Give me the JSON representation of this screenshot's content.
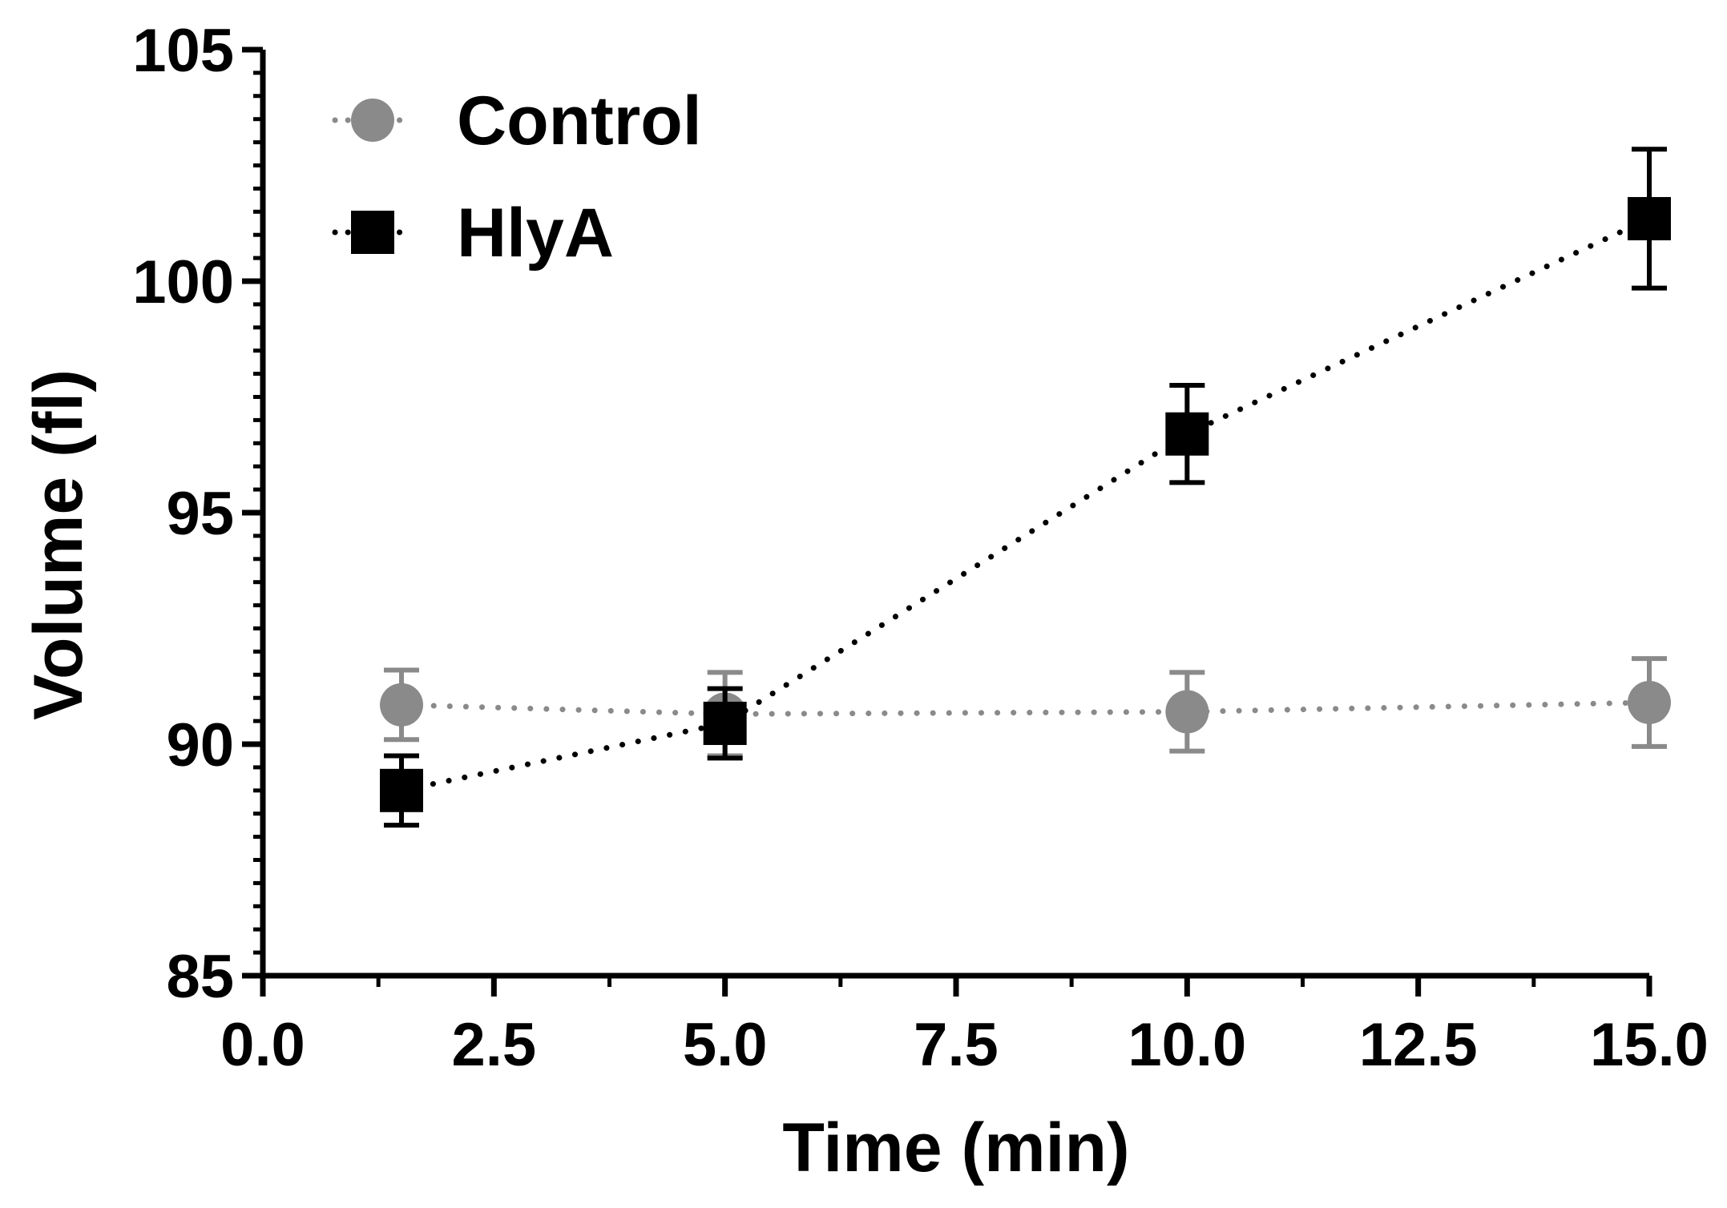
{
  "chart_data": {
    "type": "line",
    "title": "",
    "xlabel": "Time (min)",
    "ylabel": "Volume (fl)",
    "xlim": [
      0,
      15
    ],
    "ylim": [
      85,
      105
    ],
    "xticks": [
      0,
      2.5,
      5,
      7.5,
      10,
      12.5,
      15
    ],
    "xtick_labels": [
      "0.0",
      "2.5",
      "5.0",
      "7.5",
      "10.0",
      "12.5",
      "15.0"
    ],
    "yticks": [
      85,
      90,
      95,
      100,
      105
    ],
    "ytick_labels": [
      "85",
      "90",
      "95",
      "100",
      "105"
    ],
    "grid": false,
    "legend_position": "top-left",
    "series": [
      {
        "name": "Control",
        "marker": "circle",
        "line_style": "dotted",
        "color": "#8a8a8a",
        "x": [
          1.5,
          5,
          10,
          15
        ],
        "y": [
          90.85,
          90.65,
          90.7,
          90.9
        ],
        "error": [
          0.75,
          0.9,
          0.85,
          0.95
        ]
      },
      {
        "name": "HlyA",
        "marker": "square",
        "line_style": "dotted",
        "color": "#000000",
        "x": [
          1.5,
          5,
          10,
          15
        ],
        "y": [
          89.0,
          90.45,
          96.7,
          101.35
        ],
        "error": [
          0.75,
          0.75,
          1.05,
          1.5
        ]
      }
    ]
  }
}
